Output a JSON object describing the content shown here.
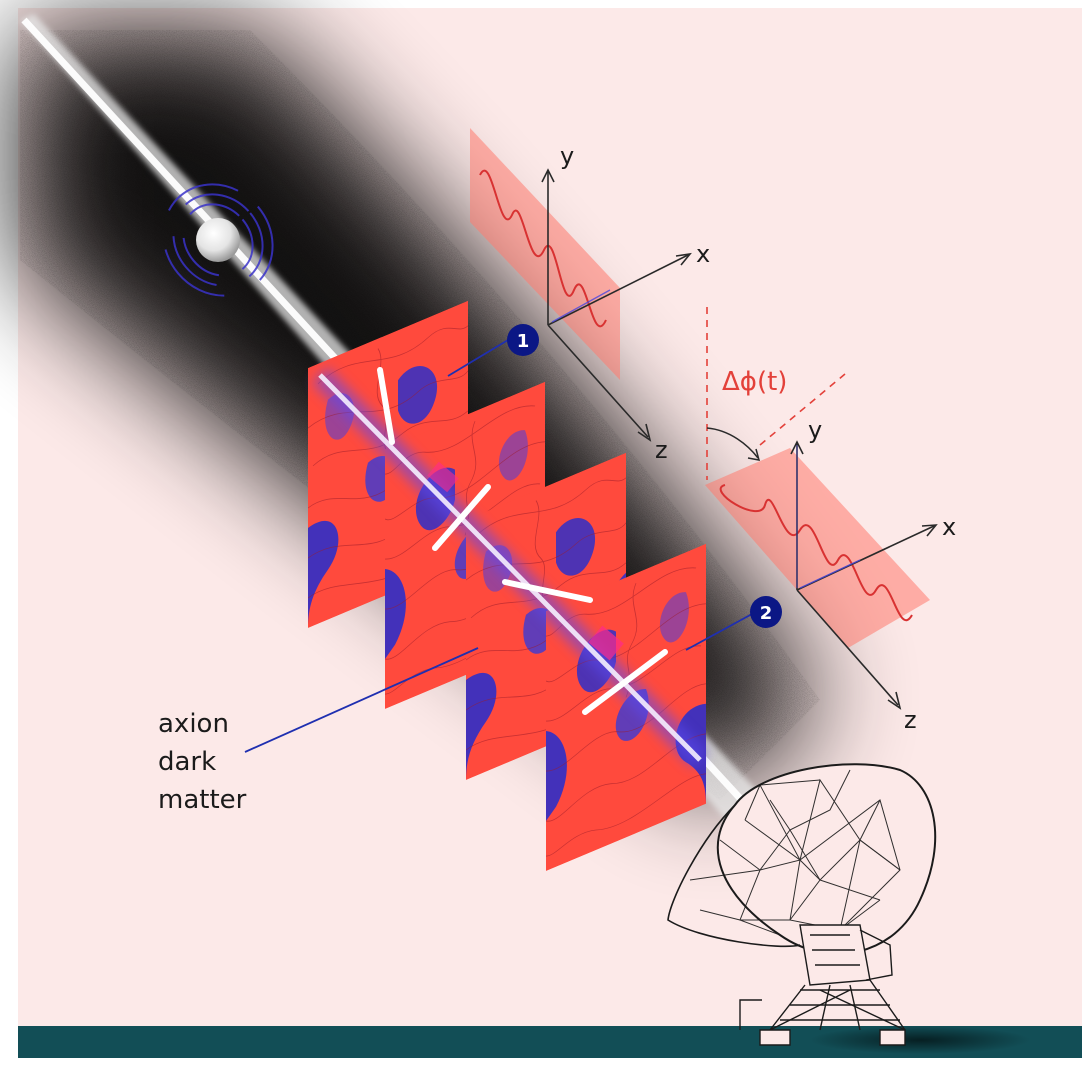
{
  "labels": {
    "axis_y1": "y",
    "axis_x1": "x",
    "axis_z1": "z",
    "axis_y2": "y",
    "axis_x2": "x",
    "axis_z2": "z",
    "phase_shift": "Δϕ(t)",
    "marker_1": "1",
    "marker_2": "2",
    "dm_line1": "axion",
    "dm_line2": "dark",
    "dm_line3": "matter"
  },
  "colors": {
    "background": "#fce9e8",
    "ground": "#124e56",
    "accent_red": "#ff3b30",
    "wave_red": "#e3413a",
    "patch_blue": "#2f2fc8",
    "marker_blue": "#0b1785",
    "text_dark": "#1b1b1b",
    "beam_white": "#ffffff"
  },
  "icons": {
    "source": "pulsar-icon",
    "receiver": "radio-telescope-icon"
  }
}
